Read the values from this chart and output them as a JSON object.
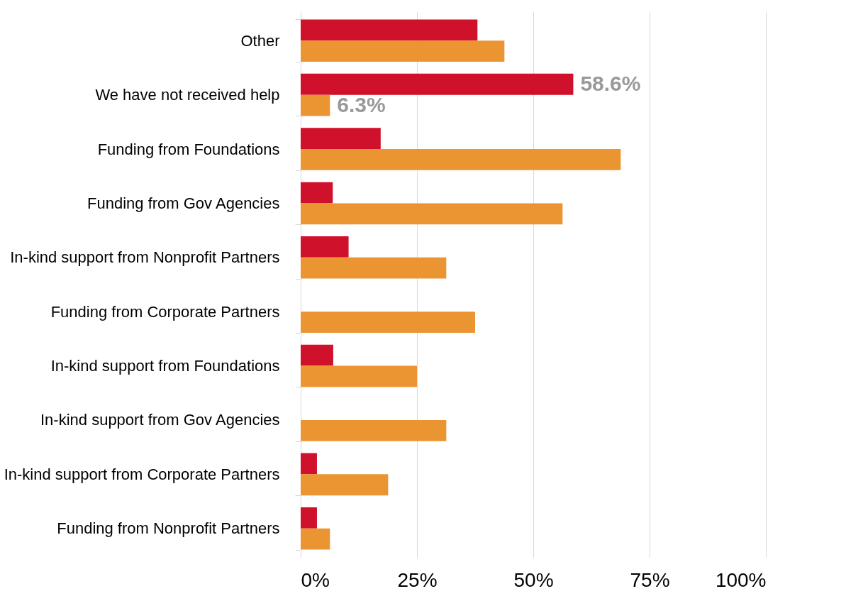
{
  "chart_data": {
    "type": "bar",
    "orientation": "horizontal",
    "categories": [
      "Other",
      "We have not received help",
      "Funding from Foundations",
      "Funding from Gov Agencies",
      "In-kind support from Nonprofit Partners",
      "Funding from Corporate Partners",
      "In-kind support from Foundations",
      "In-kind support from Gov Agencies",
      "In-kind support from Corporate Partners",
      "Funding from Nonprofit Partners"
    ],
    "series": [
      {
        "color": "#d0112b",
        "values": [
          38.0,
          58.6,
          17.2,
          6.9,
          10.3,
          0,
          7.0,
          0,
          3.5,
          3.5
        ],
        "value_labels": [
          null,
          "58.6%",
          null,
          null,
          null,
          null,
          null,
          null,
          null,
          null
        ]
      },
      {
        "color": "#eb9532",
        "values": [
          43.8,
          6.3,
          68.8,
          56.3,
          31.3,
          37.5,
          25.0,
          31.3,
          18.8,
          6.3
        ],
        "value_labels": [
          null,
          "6.3%",
          null,
          null,
          null,
          null,
          null,
          null,
          null,
          null
        ]
      }
    ],
    "xlim": [
      0,
      100
    ],
    "xticks": [
      {
        "value": 0,
        "label": "0%"
      },
      {
        "value": 25,
        "label": "25%"
      },
      {
        "value": 50,
        "label": "50%"
      },
      {
        "value": 75,
        "label": "75%"
      },
      {
        "value": 100,
        "label": "100%"
      }
    ],
    "grid": "x"
  }
}
